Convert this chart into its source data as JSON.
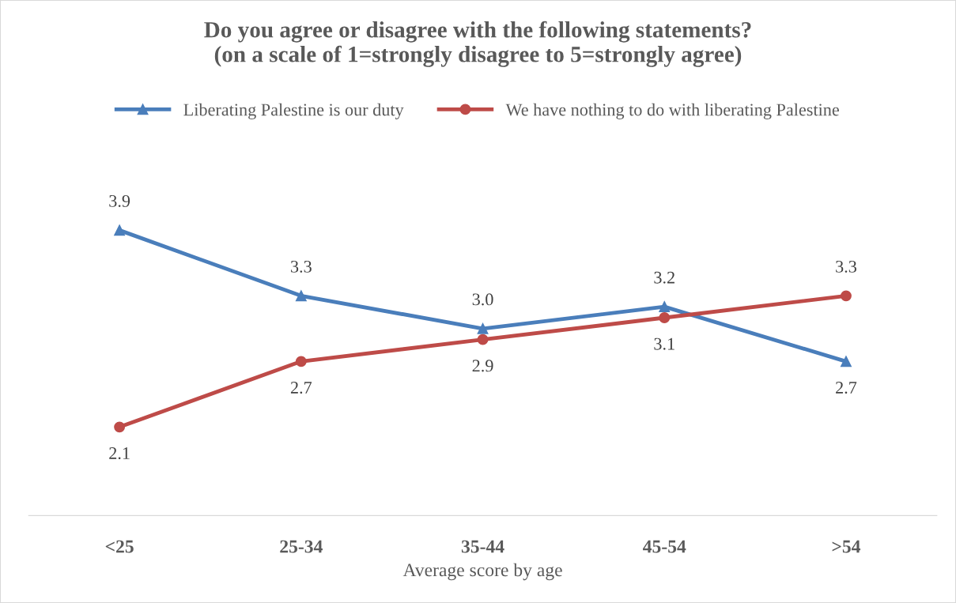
{
  "chart_data": {
    "type": "line",
    "title": "Do you agree or disagree with the following statements?\n(on a scale of 1=strongly disagree to 5=strongly agree)",
    "xlabel": "Average score by age",
    "categories": [
      "<25",
      "25-34",
      "35-44",
      "45-54",
      ">54"
    ],
    "series": [
      {
        "name": "Liberating Palestine is our duty",
        "color": "#4a7ebb",
        "marker": "triangle",
        "values": [
          3.9,
          3.3,
          3.0,
          3.2,
          2.7
        ],
        "value_labels": [
          "3.9",
          "3.3",
          "3.0",
          "3.2",
          "2.7"
        ]
      },
      {
        "name": "We have nothing to do with liberating Palestine",
        "color": "#be4b48",
        "marker": "circle",
        "values": [
          2.1,
          2.7,
          2.9,
          3.1,
          3.3
        ],
        "value_labels": [
          "2.1",
          "2.7",
          "2.9",
          "3.1",
          "3.3"
        ]
      }
    ],
    "tick_labels": "x",
    "grid": false,
    "legend": "top",
    "line_style": "solid"
  }
}
